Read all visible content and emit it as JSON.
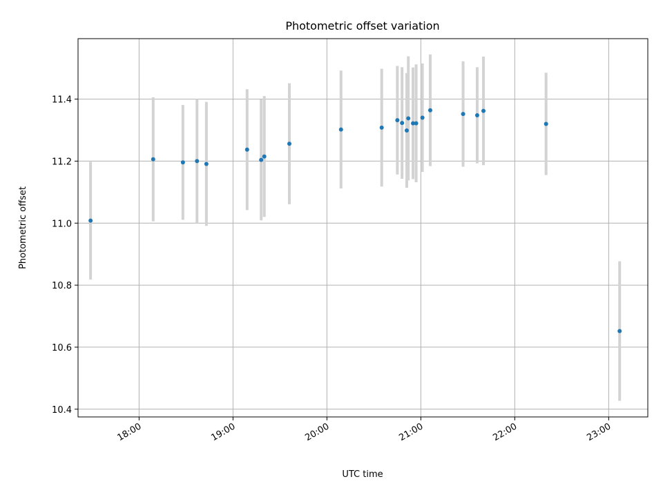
{
  "chart_data": {
    "type": "scatter",
    "title": "Photometric offset variation",
    "xlabel": "UTC time",
    "ylabel": "Photometric offset",
    "xlim": [
      "17:21",
      "23:25"
    ],
    "ylim": [
      10.375,
      11.595
    ],
    "x_ticks": [
      "18:00",
      "19:00",
      "20:00",
      "21:00",
      "22:00",
      "23:00"
    ],
    "y_ticks": [
      "10.4",
      "10.6",
      "10.8",
      "11.0",
      "11.2",
      "11.4"
    ],
    "grid": true,
    "point_color": "#1f77b4",
    "errorbar_color": "#d3d3d3",
    "points": [
      {
        "x": "17:29",
        "y": 11.008,
        "err": 0.19
      },
      {
        "x": "18:09",
        "y": 11.206,
        "err": 0.2
      },
      {
        "x": "18:28",
        "y": 11.196,
        "err": 0.185
      },
      {
        "x": "18:37",
        "y": 11.2,
        "err": 0.2
      },
      {
        "x": "18:43",
        "y": 11.191,
        "err": 0.2
      },
      {
        "x": "19:09",
        "y": 11.237,
        "err": 0.195
      },
      {
        "x": "19:18",
        "y": 11.204,
        "err": 0.195
      },
      {
        "x": "19:20",
        "y": 11.215,
        "err": 0.195
      },
      {
        "x": "19:36",
        "y": 11.256,
        "err": 0.195
      },
      {
        "x": "20:09",
        "y": 11.302,
        "err": 0.19
      },
      {
        "x": "20:35",
        "y": 11.308,
        "err": 0.19
      },
      {
        "x": "20:45",
        "y": 11.332,
        "err": 0.175
      },
      {
        "x": "20:48",
        "y": 11.323,
        "err": 0.18
      },
      {
        "x": "20:51",
        "y": 11.299,
        "err": 0.185
      },
      {
        "x": "20:52",
        "y": 11.338,
        "err": 0.2
      },
      {
        "x": "20:55",
        "y": 11.322,
        "err": 0.18
      },
      {
        "x": "20:57",
        "y": 11.322,
        "err": 0.19
      },
      {
        "x": "21:01",
        "y": 11.34,
        "err": 0.175
      },
      {
        "x": "21:06",
        "y": 11.364,
        "err": 0.18
      },
      {
        "x": "21:27",
        "y": 11.352,
        "err": 0.17
      },
      {
        "x": "21:36",
        "y": 11.348,
        "err": 0.155
      },
      {
        "x": "21:40",
        "y": 11.362,
        "err": 0.175
      },
      {
        "x": "22:20",
        "y": 11.32,
        "err": 0.165
      },
      {
        "x": "23:07",
        "y": 10.652,
        "err": 0.225
      }
    ]
  }
}
